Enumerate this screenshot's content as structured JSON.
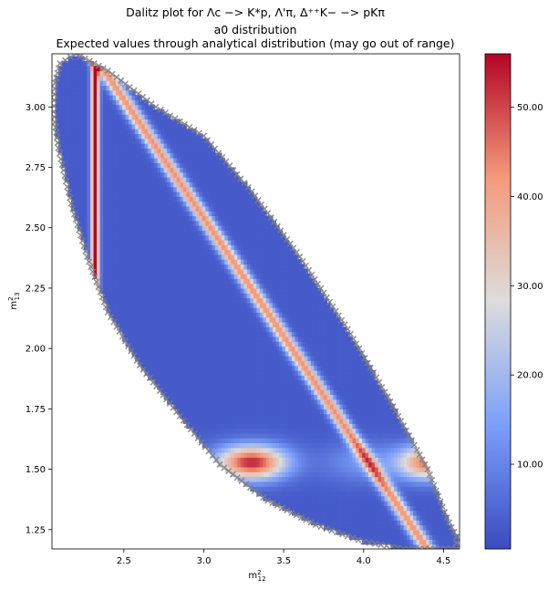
{
  "chart_data": {
    "type": "heatmap",
    "title": "Dalitz plot for  Λc −> K*p, Λ'π, Δ⁺⁺K− −> pKπ",
    "subtitle": "a0 distribution",
    "subtitle2": "Expected values through analytical distribution (may go out of range)",
    "xlabel": "m²₁₂",
    "ylabel": "m²₁₃",
    "xlim": [
      2.05,
      4.6
    ],
    "ylim": [
      1.17,
      3.22
    ],
    "x_ticks": [
      "2.5",
      "3.0",
      "3.5",
      "4.0",
      "4.5"
    ],
    "y_ticks": [
      "1.25",
      "1.50",
      "1.75",
      "2.00",
      "2.25",
      "2.50",
      "2.75",
      "3.00"
    ],
    "colorbar": {
      "range": [
        0.5,
        56.0
      ],
      "ticks": [
        "10.00",
        "20.00",
        "30.00",
        "40.00",
        "50.00"
      ],
      "colormap": "coolwarm"
    },
    "structures": [
      {
        "kind": "band",
        "variable": "m12sq",
        "center": 2.32,
        "peak": 55
      },
      {
        "kind": "band",
        "variable": "m13sq",
        "center": 1.53,
        "peak": 50
      },
      {
        "kind": "band",
        "variable": "m23sq",
        "center_line": [
          [
            2.35,
            3.18
          ],
          [
            4.35,
            1.22
          ]
        ],
        "peak": 40
      }
    ],
    "boundary_marker": "x",
    "boundary_color": "#808080"
  }
}
